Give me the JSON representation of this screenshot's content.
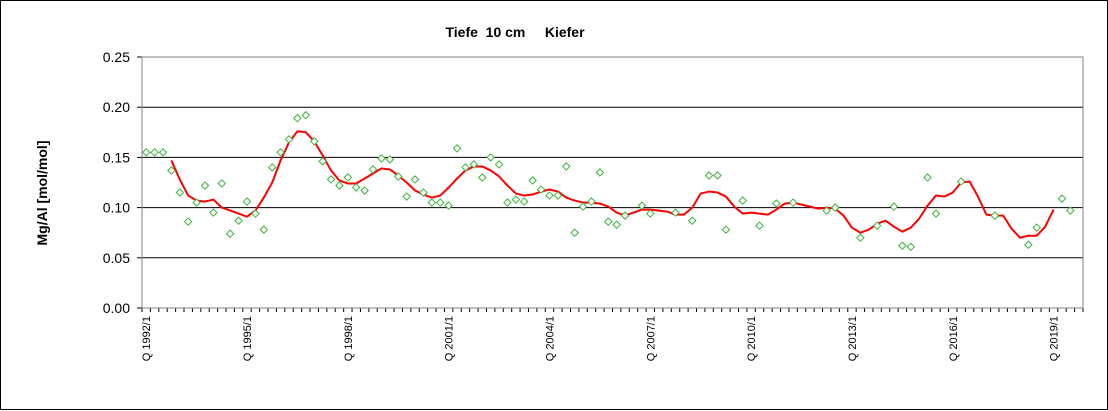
{
  "chart_data": {
    "type": "scatter+line",
    "title": "Tiefe  10 cm     Kiefer",
    "ylabel": "Mg/Al [mol/mol]",
    "xlabel": "",
    "ylim": [
      0,
      0.25
    ],
    "yticks": [
      "0.00",
      "0.05",
      "0.10",
      "0.15",
      "0.20",
      "0.25"
    ],
    "yticks_values": [
      0,
      0.05,
      0.1,
      0.15,
      0.2,
      0.25
    ],
    "grid": "horizontal",
    "x_quarter_range": [
      0,
      111
    ],
    "xtick_labels": [
      {
        "q": 0,
        "label": "Q 1992/1"
      },
      {
        "q": 12,
        "label": "Q 1995/1"
      },
      {
        "q": 24,
        "label": "Q 1998/1"
      },
      {
        "q": 36,
        "label": "Q 2001/1"
      },
      {
        "q": 48,
        "label": "Q 2004/1"
      },
      {
        "q": 60,
        "label": "Q 2007/1"
      },
      {
        "q": 72,
        "label": "Q 2010/1"
      },
      {
        "q": 84,
        "label": "Q 2013/1"
      },
      {
        "q": 96,
        "label": "Q 2016/1"
      },
      {
        "q": 108,
        "label": "Q 2019/1"
      }
    ],
    "series": [
      {
        "kind": "scatter",
        "marker": "diamond",
        "color": "#3cb43c",
        "points": [
          [
            0,
            0.155
          ],
          [
            1,
            0.155
          ],
          [
            2,
            0.155
          ],
          [
            3,
            0.137
          ],
          [
            4,
            0.115
          ],
          [
            5,
            0.086
          ],
          [
            6,
            0.105
          ],
          [
            7,
            0.122
          ],
          [
            8,
            0.095
          ],
          [
            9,
            0.124
          ],
          [
            10,
            0.074
          ],
          [
            11,
            0.087
          ],
          [
            12,
            0.106
          ],
          [
            13,
            0.094
          ],
          [
            14,
            0.078
          ],
          [
            15,
            0.14
          ],
          [
            16,
            0.155
          ],
          [
            17,
            0.168
          ],
          [
            18,
            0.189
          ],
          [
            19,
            0.192
          ],
          [
            20,
            0.166
          ],
          [
            21,
            0.146
          ],
          [
            22,
            0.128
          ],
          [
            23,
            0.122
          ],
          [
            24,
            0.13
          ],
          [
            25,
            0.12
          ],
          [
            26,
            0.117
          ],
          [
            27,
            0.138
          ],
          [
            28,
            0.149
          ],
          [
            29,
            0.148
          ],
          [
            30,
            0.131
          ],
          [
            31,
            0.111
          ],
          [
            32,
            0.128
          ],
          [
            33,
            0.115
          ],
          [
            34,
            0.105
          ],
          [
            35,
            0.105
          ],
          [
            36,
            0.102
          ],
          [
            37,
            0.159
          ],
          [
            38,
            0.14
          ],
          [
            39,
            0.143
          ],
          [
            40,
            0.13
          ],
          [
            41,
            0.15
          ],
          [
            42,
            0.143
          ],
          [
            43,
            0.105
          ],
          [
            44,
            0.108
          ],
          [
            45,
            0.106
          ],
          [
            46,
            0.127
          ],
          [
            47,
            0.118
          ],
          [
            48,
            0.112
          ],
          [
            49,
            0.112
          ],
          [
            50,
            0.141
          ],
          [
            51,
            0.075
          ],
          [
            52,
            0.101
          ],
          [
            53,
            0.106
          ],
          [
            54,
            0.135
          ],
          [
            55,
            0.086
          ],
          [
            56,
            0.083
          ],
          [
            57,
            0.092
          ],
          [
            59,
            0.102
          ],
          [
            60,
            0.094
          ],
          [
            63,
            0.095
          ],
          [
            65,
            0.087
          ],
          [
            67,
            0.132
          ],
          [
            68,
            0.132
          ],
          [
            69,
            0.078
          ],
          [
            71,
            0.107
          ],
          [
            73,
            0.082
          ],
          [
            75,
            0.104
          ],
          [
            77,
            0.105
          ],
          [
            81,
            0.097
          ],
          [
            82,
            0.1
          ],
          [
            85,
            0.07
          ],
          [
            87,
            0.082
          ],
          [
            89,
            0.101
          ],
          [
            90,
            0.062
          ],
          [
            91,
            0.061
          ],
          [
            93,
            0.13
          ],
          [
            94,
            0.094
          ],
          [
            97,
            0.126
          ],
          [
            101,
            0.092
          ],
          [
            105,
            0.063
          ],
          [
            106,
            0.08
          ],
          [
            109,
            0.109
          ],
          [
            110,
            0.097
          ]
        ]
      },
      {
        "kind": "line",
        "color": "#ff0000",
        "points": [
          [
            3,
            0.147
          ],
          [
            4,
            0.128
          ],
          [
            5,
            0.112
          ],
          [
            6,
            0.107
          ],
          [
            7,
            0.106
          ],
          [
            8,
            0.108
          ],
          [
            9,
            0.1
          ],
          [
            10,
            0.097
          ],
          [
            11,
            0.094
          ],
          [
            12,
            0.091
          ],
          [
            13,
            0.097
          ],
          [
            14,
            0.11
          ],
          [
            15,
            0.125
          ],
          [
            16,
            0.147
          ],
          [
            17,
            0.165
          ],
          [
            18,
            0.176
          ],
          [
            19,
            0.175
          ],
          [
            20,
            0.166
          ],
          [
            21,
            0.152
          ],
          [
            22,
            0.137
          ],
          [
            23,
            0.127
          ],
          [
            24,
            0.124
          ],
          [
            25,
            0.124
          ],
          [
            26,
            0.129
          ],
          [
            27,
            0.134
          ],
          [
            28,
            0.139
          ],
          [
            29,
            0.138
          ],
          [
            30,
            0.132
          ],
          [
            31,
            0.125
          ],
          [
            32,
            0.117
          ],
          [
            33,
            0.113
          ],
          [
            34,
            0.11
          ],
          [
            35,
            0.112
          ],
          [
            36,
            0.12
          ],
          [
            37,
            0.129
          ],
          [
            38,
            0.137
          ],
          [
            39,
            0.141
          ],
          [
            40,
            0.141
          ],
          [
            41,
            0.137
          ],
          [
            42,
            0.131
          ],
          [
            43,
            0.122
          ],
          [
            44,
            0.114
          ],
          [
            45,
            0.112
          ],
          [
            46,
            0.113
          ],
          [
            47,
            0.116
          ],
          [
            48,
            0.118
          ],
          [
            49,
            0.116
          ],
          [
            50,
            0.11
          ],
          [
            51,
            0.107
          ],
          [
            52,
            0.105
          ],
          [
            53,
            0.105
          ],
          [
            54,
            0.104
          ],
          [
            55,
            0.101
          ],
          [
            56,
            0.095
          ],
          [
            57,
            0.092
          ],
          [
            58,
            0.095
          ],
          [
            59,
            0.098
          ],
          [
            60,
            0.098
          ],
          [
            61,
            0.097
          ],
          [
            62,
            0.096
          ],
          [
            63,
            0.093
          ],
          [
            64,
            0.093
          ],
          [
            65,
            0.1
          ],
          [
            66,
            0.114
          ],
          [
            67,
            0.116
          ],
          [
            68,
            0.115
          ],
          [
            69,
            0.111
          ],
          [
            70,
            0.101
          ],
          [
            71,
            0.094
          ],
          [
            72,
            0.095
          ],
          [
            73,
            0.094
          ],
          [
            74,
            0.093
          ],
          [
            75,
            0.098
          ],
          [
            76,
            0.104
          ],
          [
            77,
            0.105
          ],
          [
            78,
            0.103
          ],
          [
            79,
            0.101
          ],
          [
            80,
            0.099
          ],
          [
            81,
            0.1
          ],
          [
            82,
            0.099
          ],
          [
            83,
            0.092
          ],
          [
            84,
            0.08
          ],
          [
            85,
            0.075
          ],
          [
            86,
            0.078
          ],
          [
            87,
            0.084
          ],
          [
            88,
            0.087
          ],
          [
            89,
            0.081
          ],
          [
            90,
            0.076
          ],
          [
            91,
            0.08
          ],
          [
            92,
            0.089
          ],
          [
            93,
            0.102
          ],
          [
            94,
            0.112
          ],
          [
            95,
            0.111
          ],
          [
            96,
            0.115
          ],
          [
            97,
            0.125
          ],
          [
            98,
            0.126
          ],
          [
            99,
            0.111
          ],
          [
            100,
            0.093
          ],
          [
            101,
            0.092
          ],
          [
            102,
            0.092
          ],
          [
            103,
            0.079
          ],
          [
            104,
            0.07
          ],
          [
            105,
            0.072
          ],
          [
            106,
            0.072
          ],
          [
            107,
            0.081
          ],
          [
            108,
            0.098
          ]
        ]
      }
    ]
  }
}
